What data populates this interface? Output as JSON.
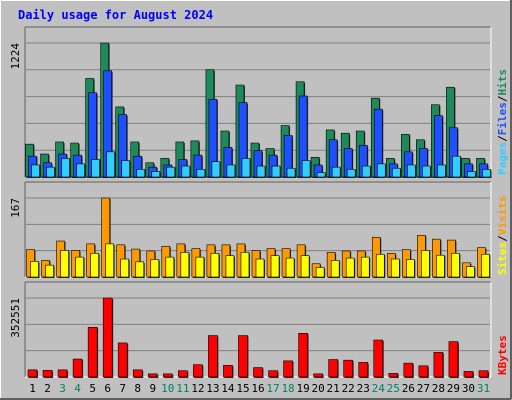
{
  "chart_data": {
    "type": "bar",
    "title": "Daily usage for August 2024",
    "x": [
      "1",
      "2",
      "3",
      "4",
      "5",
      "6",
      "7",
      "8",
      "9",
      "10",
      "11",
      "12",
      "13",
      "14",
      "15",
      "16",
      "17",
      "18",
      "19",
      "20",
      "21",
      "22",
      "23",
      "24",
      "25",
      "26",
      "27",
      "28",
      "29",
      "30",
      "31"
    ],
    "weekend_days": [
      "3",
      "4",
      "10",
      "11",
      "17",
      "18",
      "24",
      "25",
      "31"
    ],
    "panels": [
      {
        "name": "hits-files-pages",
        "axis_max_label": "1224",
        "ymax": 1224,
        "legend": [
          "Pages",
          "/",
          "Files",
          "/",
          "Hits"
        ],
        "series": [
          {
            "name": "Hits",
            "color": "#1e8a5a",
            "values": [
              300,
              210,
              320,
              310,
              900,
              1224,
              640,
              320,
              130,
              170,
              320,
              330,
              980,
              420,
              840,
              310,
              260,
              470,
              870,
              180,
              430,
              400,
              420,
              720,
              170,
              390,
              340,
              660,
              820,
              170,
              170
            ]
          },
          {
            "name": "Files",
            "color": "#1e50ff",
            "values": [
              190,
              130,
              210,
              200,
              770,
              970,
              570,
              190,
              90,
              110,
              160,
              200,
              710,
              270,
              680,
              240,
              200,
              380,
              740,
              110,
              340,
              260,
              290,
              620,
              120,
              230,
              260,
              560,
              450,
              120,
              120
            ]
          },
          {
            "name": "Pages",
            "color": "#33ccff",
            "values": [
              110,
              90,
              170,
              120,
              160,
              230,
              150,
              70,
              50,
              90,
              100,
              70,
              140,
              110,
              170,
              100,
              100,
              80,
              150,
              40,
              90,
              70,
              100,
              120,
              80,
              110,
              100,
              110,
              190,
              50,
              70
            ]
          }
        ]
      },
      {
        "name": "visits-sites",
        "axis_max_label": "167",
        "ymax": 167,
        "legend": [
          "Sites",
          "/",
          "Visits"
        ],
        "series": [
          {
            "name": "Visits",
            "color": "#ff9900",
            "values": [
              58,
              35,
              76,
              56,
              70,
              167,
              68,
              59,
              55,
              65,
              70,
              60,
              68,
              68,
              70,
              56,
              60,
              60,
              68,
              28,
              52,
              55,
              55,
              84,
              50,
              58,
              88,
              80,
              78,
              30,
              62
            ]
          },
          {
            "name": "Sites",
            "color": "#ffff00",
            "values": [
              33,
              25,
              56,
              42,
              50,
              70,
              38,
              32,
              37,
              42,
              52,
              42,
              50,
              45,
              52,
              38,
              45,
              40,
              45,
              20,
              35,
              40,
              42,
              48,
              38,
              37,
              56,
              46,
              50,
              22,
              48
            ]
          }
        ]
      },
      {
        "name": "kbytes",
        "axis_max_label": "352551",
        "ymax": 352551,
        "legend": [
          "KBytes"
        ],
        "series": [
          {
            "name": "KBytes",
            "color": "#ff0000",
            "values": [
              32000,
              30000,
              32000,
              80000,
              222000,
              352551,
              152000,
              32000,
              14000,
              14000,
              28000,
              55000,
              185000,
              52000,
              185000,
              42000,
              28000,
              72000,
              195000,
              14000,
              78000,
              75000,
              65000,
              165000,
              16000,
              62000,
              50000,
              110000,
              158000,
              25000,
              28000
            ]
          }
        ]
      }
    ],
    "colors": {
      "background": "#c0c0c0",
      "plot": "#c0c0c0",
      "title": "#0000ff",
      "axis_text": "#000000",
      "weekend_text": "#00806a",
      "grid": "#808080"
    }
  }
}
